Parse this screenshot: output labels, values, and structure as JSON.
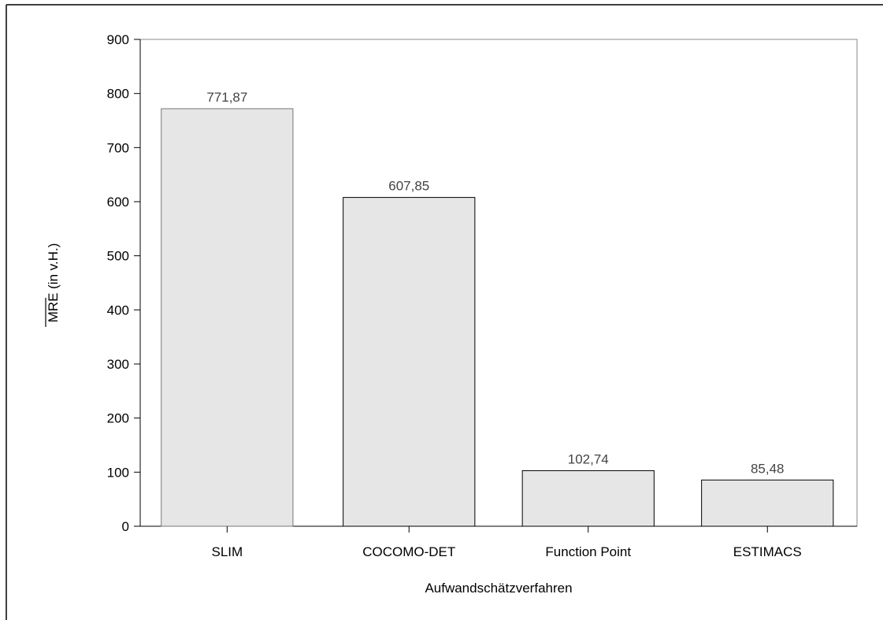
{
  "chart_data": {
    "type": "bar",
    "categories": [
      "SLIM",
      "COCOMO-DET",
      "Function Point",
      "ESTIMACS"
    ],
    "values": [
      771.87,
      607.85,
      102.74,
      85.48
    ],
    "data_labels": [
      "771,87",
      "607,85",
      "102,74",
      "85,48"
    ],
    "xlabel": "Aufwandschätzverfahren",
    "ylabel": "MRE (in v.H.)",
    "ylim": [
      0,
      900
    ],
    "yticks": [
      0,
      100,
      200,
      300,
      400,
      500,
      600,
      700,
      800,
      900
    ],
    "grid": false,
    "bar_color": "#e6e6e6",
    "bar_edge_color": "#000000"
  }
}
